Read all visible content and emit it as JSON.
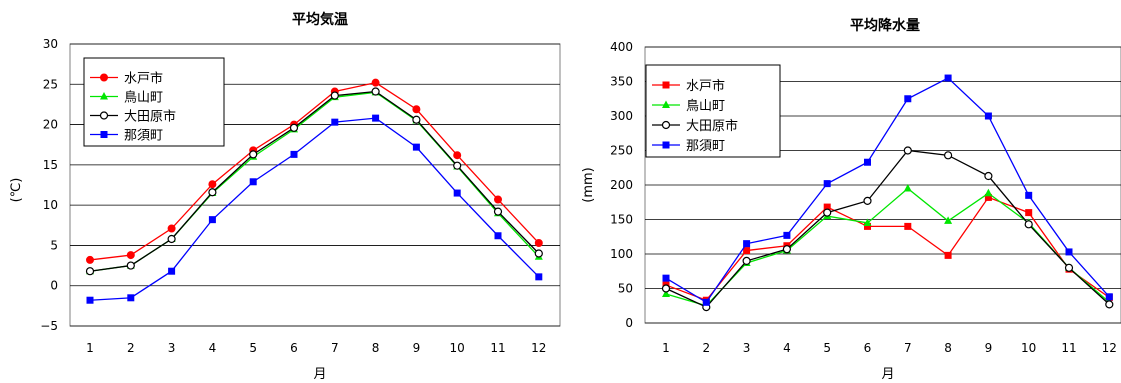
{
  "charts": [
    {
      "id": "temp",
      "title": "平均気温",
      "xlabel": "月",
      "ylabel": "(℃)",
      "ylim": [
        -5,
        30
      ],
      "yticks": [
        -5,
        0,
        5,
        10,
        15,
        20,
        25,
        30
      ],
      "legend_position": "top-left"
    },
    {
      "id": "precip",
      "title": "平均降水量",
      "xlabel": "月",
      "ylabel": "(mm)",
      "ylim": [
        0,
        400
      ],
      "yticks": [
        0,
        50,
        100,
        150,
        200,
        250,
        300,
        350,
        400
      ],
      "legend_position": "top-left"
    }
  ],
  "chart_data": [
    {
      "type": "line",
      "title": "平均気温",
      "xlabel": "月",
      "ylabel": "(℃)",
      "ylim": [
        -5,
        30
      ],
      "grid": true,
      "legend": "top-left",
      "x": [
        "1",
        "2",
        "3",
        "4",
        "5",
        "6",
        "7",
        "8",
        "9",
        "10",
        "11",
        "12"
      ],
      "series": [
        {
          "name": "水戸市",
          "color": "#ff0000",
          "marker": "circle",
          "values": [
            3.2,
            3.8,
            7.1,
            12.6,
            16.8,
            20.0,
            24.1,
            25.2,
            21.9,
            16.2,
            10.7,
            5.3
          ]
        },
        {
          "name": "鳥山町",
          "color": "#00e600",
          "marker": "triangle",
          "values": [
            1.8,
            2.5,
            5.8,
            11.5,
            16.0,
            19.4,
            23.4,
            24.0,
            20.5,
            14.8,
            9.0,
            3.6
          ]
        },
        {
          "name": "大田原市",
          "color": "#000000",
          "marker": "open-circle",
          "values": [
            1.8,
            2.5,
            5.8,
            11.6,
            16.3,
            19.6,
            23.6,
            24.1,
            20.6,
            14.9,
            9.2,
            4.0
          ]
        },
        {
          "name": "那須町",
          "color": "#0000ff",
          "marker": "square",
          "values": [
            -1.8,
            -1.5,
            1.8,
            8.2,
            12.9,
            16.3,
            20.3,
            20.8,
            17.2,
            11.5,
            6.2,
            1.1
          ]
        }
      ]
    },
    {
      "type": "line",
      "title": "平均降水量",
      "xlabel": "月",
      "ylabel": "(mm)",
      "ylim": [
        0,
        400
      ],
      "grid": true,
      "legend": "top-left",
      "x": [
        "1",
        "2",
        "3",
        "4",
        "5",
        "6",
        "7",
        "8",
        "9",
        "10",
        "11",
        "12"
      ],
      "series": [
        {
          "name": "水戸市",
          "color": "#ff0000",
          "marker": "square",
          "values": [
            55,
            33,
            105,
            112,
            168,
            140,
            140,
            98,
            182,
            160,
            78,
            37
          ]
        },
        {
          "name": "鳥山町",
          "color": "#00e600",
          "marker": "triangle",
          "values": [
            42,
            25,
            87,
            105,
            155,
            145,
            195,
            148,
            188,
            145,
            80,
            30
          ]
        },
        {
          "name": "大田原市",
          "color": "#000000",
          "marker": "open-circle",
          "values": [
            50,
            23,
            90,
            107,
            160,
            177,
            250,
            243,
            213,
            143,
            80,
            27
          ]
        },
        {
          "name": "那須町",
          "color": "#0000ff",
          "marker": "square",
          "values": [
            65,
            30,
            115,
            127,
            202,
            233,
            325,
            355,
            300,
            185,
            103,
            38
          ]
        }
      ]
    }
  ]
}
